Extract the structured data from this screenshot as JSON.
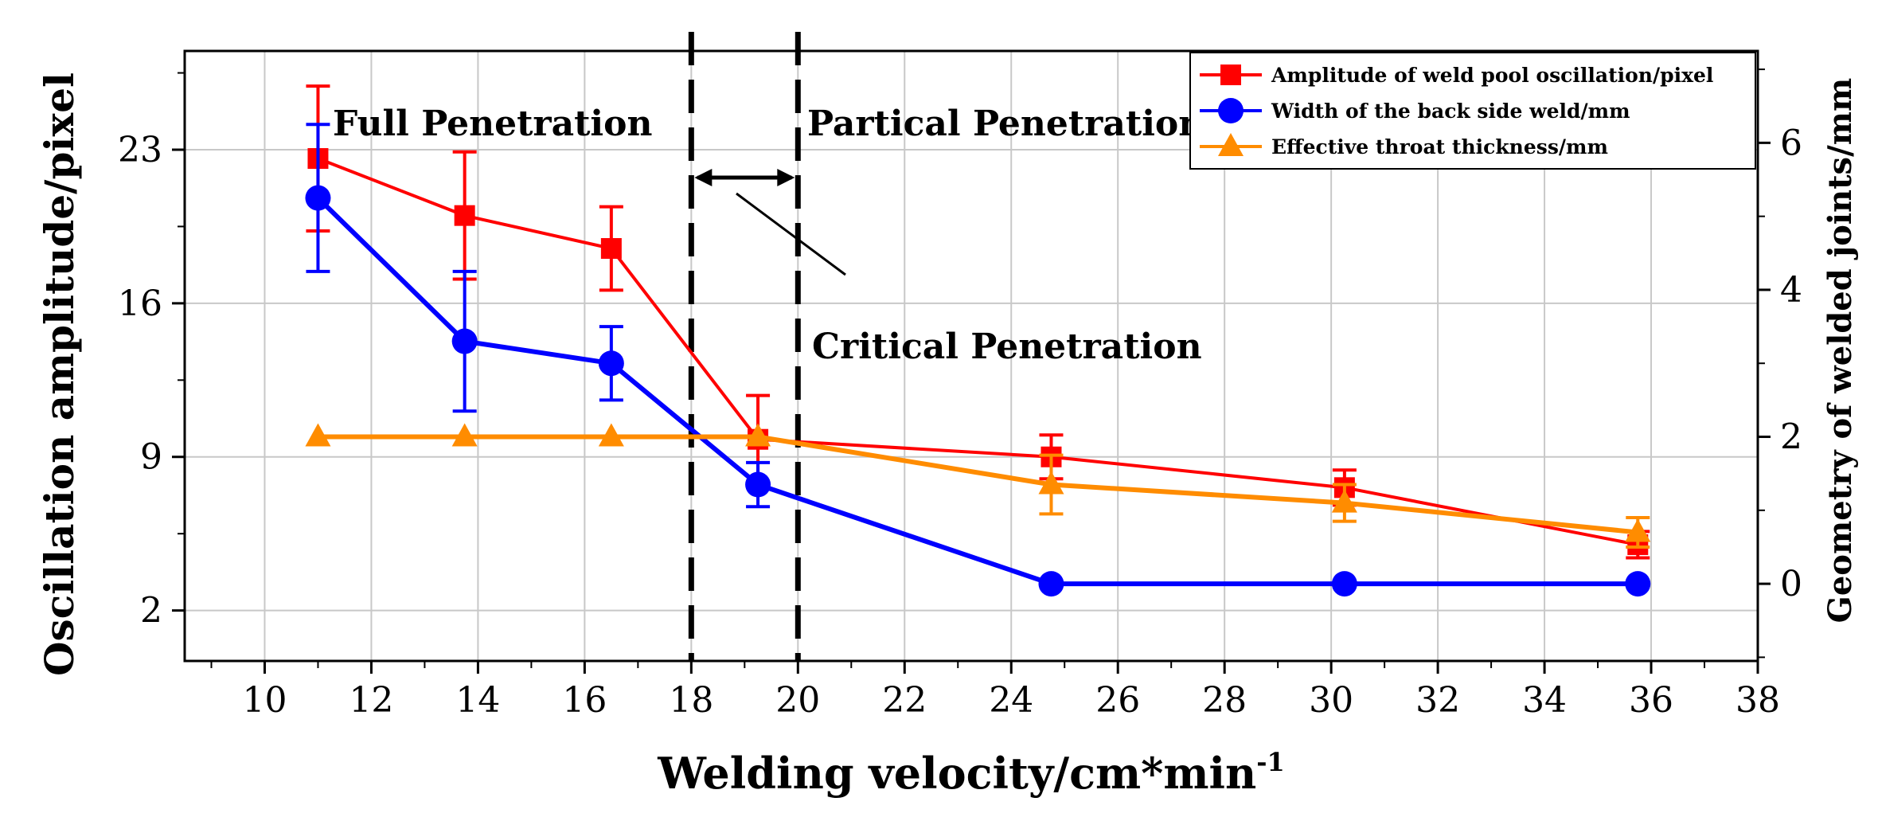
{
  "chart_data": {
    "type": "line",
    "xlabel": "Welding velocity/cm*min",
    "xlabel_sup": "-1",
    "ylabel_left": "Oscillation amplitude/pixel",
    "ylabel_right": "Geometry of welded joints/mm",
    "xlim": [
      8.5,
      38
    ],
    "xticks": [
      10,
      12,
      14,
      16,
      18,
      20,
      22,
      24,
      26,
      28,
      30,
      32,
      34,
      36,
      38
    ],
    "ylim_left": [
      -0.3,
      27.5
    ],
    "yticks_left": [
      2,
      9,
      16,
      23
    ],
    "ylim_right": [
      -1.05,
      7.25
    ],
    "yticks_right": [
      0,
      2,
      4,
      6
    ],
    "grid": true,
    "legend_position": "top-right",
    "series": [
      {
        "name": "Amplitude of weld pool oscillation/pixel",
        "axis": "left",
        "color": "#ff0000",
        "marker": "square",
        "x": [
          11,
          13.75,
          16.5,
          19.25,
          24.75,
          30.25,
          35.75
        ],
        "y": [
          22.6,
          20.0,
          18.5,
          9.8,
          9.0,
          7.6,
          5.0
        ],
        "err": [
          3.3,
          2.9,
          1.9,
          2.0,
          1.0,
          0.8,
          0.6
        ]
      },
      {
        "name": "Width of the back side weld/mm",
        "axis": "right",
        "color": "#0000ff",
        "marker": "circle",
        "x": [
          11,
          13.75,
          16.5,
          19.25,
          24.75,
          30.25,
          35.75
        ],
        "y": [
          5.25,
          3.3,
          3.0,
          1.35,
          0.0,
          0.0,
          0.0
        ],
        "err": [
          1.0,
          0.95,
          0.5,
          0.3,
          0,
          0,
          0
        ]
      },
      {
        "name": "Effective throat thickness/mm",
        "axis": "right",
        "color": "#ff8c00",
        "marker": "triangle",
        "x": [
          11,
          13.75,
          16.5,
          19.25,
          24.75,
          30.25,
          35.75
        ],
        "y": [
          2.0,
          2.0,
          2.0,
          2.0,
          1.35,
          1.1,
          0.7
        ],
        "err": [
          0,
          0,
          0,
          0,
          0.4,
          0.25,
          0.2
        ]
      }
    ],
    "annotations": {
      "full": "Full Penetration",
      "partial": "Partical Penetration",
      "critical": "Critical Penetration"
    },
    "vlines": [
      18,
      20
    ]
  }
}
